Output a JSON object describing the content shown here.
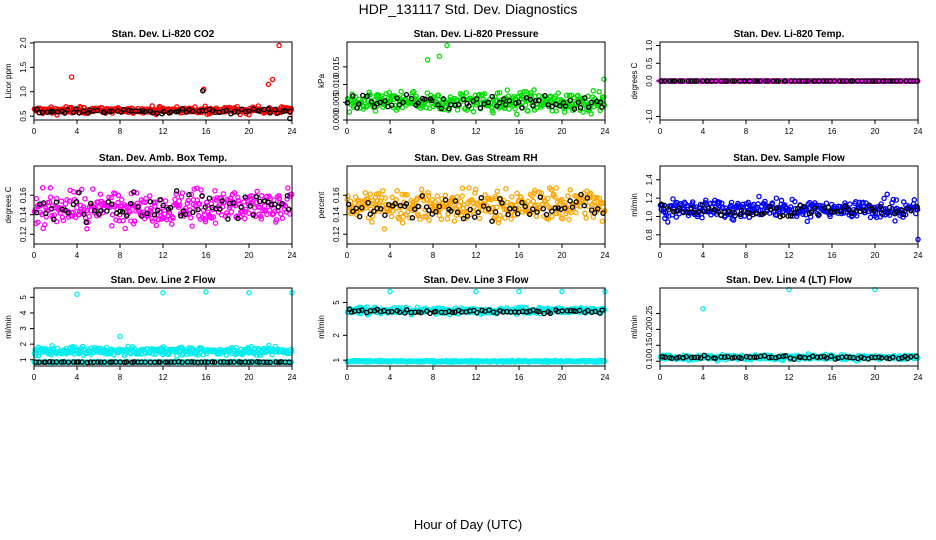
{
  "figure": {
    "title": "HDP_131117  Std. Dev. Diagnostics",
    "xlabel": "Hour of Day (UTC)"
  },
  "colors": {
    "black": "#000000",
    "red": "#ff0000",
    "green": "#00dd00",
    "magenta": "#ff00ff",
    "orange": "#ffa500",
    "blue": "#0000ff",
    "cyan": "#00eeee"
  },
  "chart_data": [
    {
      "type": "scatter",
      "title": "Stan. Dev. Li-820 CO2",
      "ylabel": "Licor ppm",
      "xlim": [
        0,
        24
      ],
      "xticks": [
        0,
        4,
        8,
        12,
        16,
        20,
        24
      ],
      "ylim": [
        0.42,
        2.02
      ],
      "yticks": [
        0.5,
        1.0,
        1.5,
        2.0
      ],
      "ytick_labels": [
        "0.5",
        "1.0",
        "1.5",
        "2.0"
      ],
      "series": [
        {
          "color": "red",
          "base": 0.62,
          "spread": 0.09,
          "outliers": [
            [
              3.5,
              1.3
            ],
            [
              15.8,
              1.05
            ],
            [
              21.8,
              1.15
            ],
            [
              22.2,
              1.25
            ],
            [
              22.8,
              1.95
            ]
          ]
        },
        {
          "color": "black",
          "base": 0.6,
          "spread": 0.07,
          "outliers": [
            [
              15.7,
              1.02
            ],
            [
              23.8,
              0.45
            ]
          ]
        }
      ]
    },
    {
      "type": "scatter",
      "title": "Stan. Dev. Li-820 Pressure",
      "ylabel": "kPa",
      "xlim": [
        0,
        24
      ],
      "xticks": [
        0,
        4,
        8,
        12,
        16,
        20,
        24
      ],
      "ylim": [
        0,
        0.022
      ],
      "yticks": [
        0.0,
        0.005,
        0.01,
        0.015
      ],
      "ytick_labels": [
        "0.000",
        "0.005",
        "0.010",
        "0.015"
      ],
      "series": [
        {
          "color": "green",
          "base": 0.005,
          "spread": 0.004,
          "outliers": [
            [
              9.3,
              0.021
            ],
            [
              7.5,
              0.017
            ],
            [
              8.6,
              0.018
            ],
            [
              23.9,
              0.0115
            ]
          ]
        },
        {
          "color": "black",
          "base": 0.005,
          "spread": 0.003,
          "outliers": []
        }
      ]
    },
    {
      "type": "scatter",
      "title": "Stan. Dev. Li-820 Temp.",
      "ylabel": "degrees C",
      "xlim": [
        0,
        24
      ],
      "xticks": [
        0,
        4,
        8,
        12,
        16,
        20,
        24
      ],
      "ylim": [
        -1.1,
        1.1
      ],
      "yticks": [
        -1.0,
        0.0,
        0.5,
        1.0
      ],
      "ytick_labels": [
        "-1.0",
        "0.0",
        "0.5",
        "1.0"
      ],
      "series": [
        {
          "color": "magenta",
          "base": 0.0,
          "spread": 0.0,
          "outliers": []
        },
        {
          "color": "black",
          "base": 0.0,
          "spread": 0.0,
          "outliers": []
        }
      ]
    },
    {
      "type": "scatter",
      "title": "Stan. Dev. Amb. Box Temp.",
      "ylabel": "degrees C",
      "xlim": [
        0,
        24
      ],
      "xticks": [
        0,
        4,
        8,
        12,
        16,
        20,
        24
      ],
      "ylim": [
        0.11,
        0.19
      ],
      "yticks": [
        0.12,
        0.14,
        0.16
      ],
      "ytick_labels": [
        "0.12",
        "0.14",
        "0.16"
      ],
      "series": [
        {
          "color": "magenta",
          "base": 0.148,
          "spread": 0.025,
          "outliers": []
        },
        {
          "color": "black",
          "base": 0.148,
          "spread": 0.02,
          "outliers": []
        }
      ]
    },
    {
      "type": "scatter",
      "title": "Stan. Dev. Gas Stream RH",
      "ylabel": "percent",
      "xlim": [
        0,
        24
      ],
      "xticks": [
        0,
        4,
        8,
        12,
        16,
        20,
        24
      ],
      "ylim": [
        0.11,
        0.19
      ],
      "yticks": [
        0.12,
        0.14,
        0.16
      ],
      "ytick_labels": [
        "0.12",
        "0.14",
        "0.16"
      ],
      "series": [
        {
          "color": "orange",
          "base": 0.15,
          "spread": 0.022,
          "outliers": []
        },
        {
          "color": "black",
          "base": 0.148,
          "spread": 0.018,
          "outliers": []
        }
      ]
    },
    {
      "type": "scatter",
      "title": "Stan. Dev. Sample Flow",
      "ylabel": "ml/min",
      "xlim": [
        0,
        24
      ],
      "xticks": [
        0,
        4,
        8,
        12,
        16,
        20,
        24
      ],
      "ylim": [
        0.7,
        1.55
      ],
      "yticks": [
        0.8,
        1.0,
        1.2,
        1.4
      ],
      "ytick_labels": [
        "0.8",
        "1.0",
        "1.2",
        "1.4"
      ],
      "series": [
        {
          "color": "blue",
          "base": 1.08,
          "spread": 0.15,
          "outliers": [
            [
              24,
              0.75
            ]
          ]
        },
        {
          "color": "black",
          "base": 1.06,
          "spread": 0.1,
          "outliers": []
        }
      ]
    },
    {
      "type": "scatter",
      "title": "Stan. Dev. Line 2 Flow",
      "ylabel": "ml/min",
      "xlim": [
        0,
        24
      ],
      "xticks": [
        0,
        4,
        8,
        12,
        16,
        20,
        24
      ],
      "ylim": [
        0.6,
        5.6
      ],
      "yticks": [
        1,
        2,
        3,
        4,
        5
      ],
      "ytick_labels": [
        "1",
        "2",
        "3",
        "4",
        "5"
      ],
      "series": [
        {
          "color": "cyan",
          "base": 1.55,
          "spread": 0.35,
          "outliers": [
            [
              4,
              5.2
            ],
            [
              8,
              2.5
            ],
            [
              12,
              5.3
            ],
            [
              16,
              5.35
            ],
            [
              20,
              5.3
            ],
            [
              24,
              5.3
            ]
          ]
        },
        {
          "color": "cyan",
          "base": 0.85,
          "spread": 0.04,
          "outliers": []
        },
        {
          "color": "black",
          "base": 0.85,
          "spread": 0.03,
          "outliers": []
        }
      ]
    },
    {
      "type": "scatter",
      "title": "Stan. Dev. Line 3 Flow",
      "ylabel": "ml/min",
      "xlim": [
        0,
        24
      ],
      "xticks": [
        0,
        4,
        8,
        12,
        16,
        20,
        24
      ],
      "ylim": [
        0.85,
        7.5
      ],
      "yticks": [
        1,
        2,
        5
      ],
      "ytick_labels": [
        "1",
        "2",
        "5"
      ],
      "log_y": true,
      "series": [
        {
          "color": "cyan",
          "base": 4.0,
          "spread": 0.5,
          "outliers": [
            [
              4,
              6.8
            ],
            [
              12,
              6.8
            ],
            [
              16,
              6.8
            ],
            [
              20,
              6.8
            ],
            [
              24,
              6.8
            ]
          ]
        },
        {
          "color": "cyan",
          "base": 0.97,
          "spread": 0.03,
          "outliers": []
        },
        {
          "color": "black",
          "base": 3.9,
          "spread": 0.3,
          "outliers": []
        }
      ]
    },
    {
      "type": "scatter",
      "title": "Stan. Dev. Line 4 (LT) Flow",
      "ylabel": "ml/min",
      "xlim": [
        0,
        24
      ],
      "xticks": [
        0,
        4,
        8,
        12,
        16,
        20,
        24
      ],
      "ylim": [
        0.085,
        0.33
      ],
      "yticks": [
        0.1,
        0.15,
        0.2,
        0.25
      ],
      "ytick_labels": [
        "0.10",
        "0.15",
        "0.20",
        "0.25"
      ],
      "series": [
        {
          "color": "cyan",
          "base": 0.112,
          "spread": 0.012,
          "outliers": [
            [
              4,
              0.265
            ],
            [
              12,
              0.325
            ],
            [
              20,
              0.325
            ]
          ]
        },
        {
          "color": "black",
          "base": 0.112,
          "spread": 0.007,
          "outliers": []
        }
      ]
    }
  ]
}
